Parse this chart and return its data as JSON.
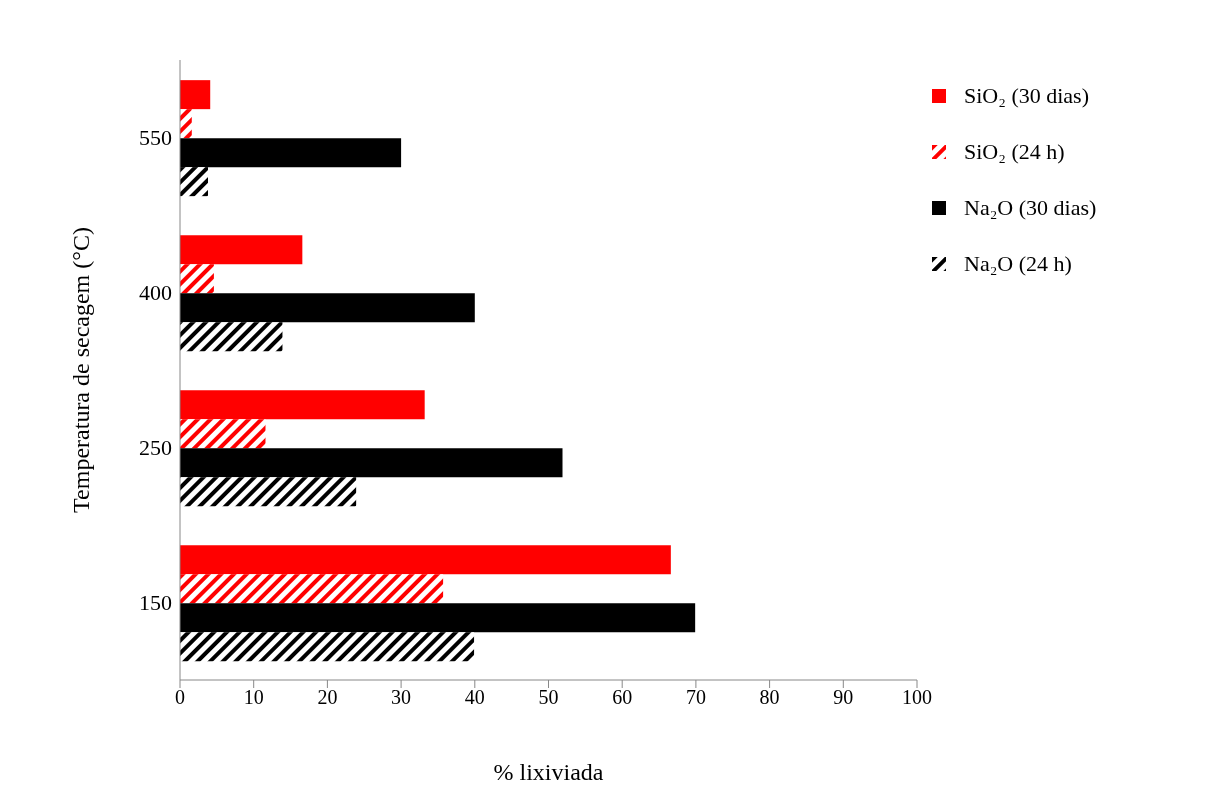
{
  "chart_data": {
    "type": "bar",
    "orientation": "horizontal",
    "xlabel": "% lixiviada",
    "ylabel": "Temperatura de secagem (°C)",
    "categories": [
      "550",
      "400",
      "250",
      "150"
    ],
    "series": [
      {
        "name": "SiO₂ (30 dias)",
        "color": "#ff0000",
        "values": [
          4.1,
          16.6,
          33.2,
          66.6
        ]
      },
      {
        "name": "SiO₂ (24 h)",
        "color": "#ff0000",
        "values": [
          1.6,
          4.6,
          11.6,
          35.7
        ]
      },
      {
        "name": "Na₂O (30 dias)",
        "color": "#000000",
        "values": [
          30.0,
          40.0,
          51.9,
          69.9
        ]
      },
      {
        "name": "Na₂O (24 h)",
        "color": "#000000",
        "values": [
          3.8,
          13.9,
          23.9,
          39.9
        ]
      }
    ],
    "xlim": [
      0,
      100
    ],
    "xticks": [
      0,
      10,
      20,
      30,
      40,
      50,
      60,
      70,
      80,
      90,
      100
    ],
    "grid": false,
    "legend": "top right"
  }
}
